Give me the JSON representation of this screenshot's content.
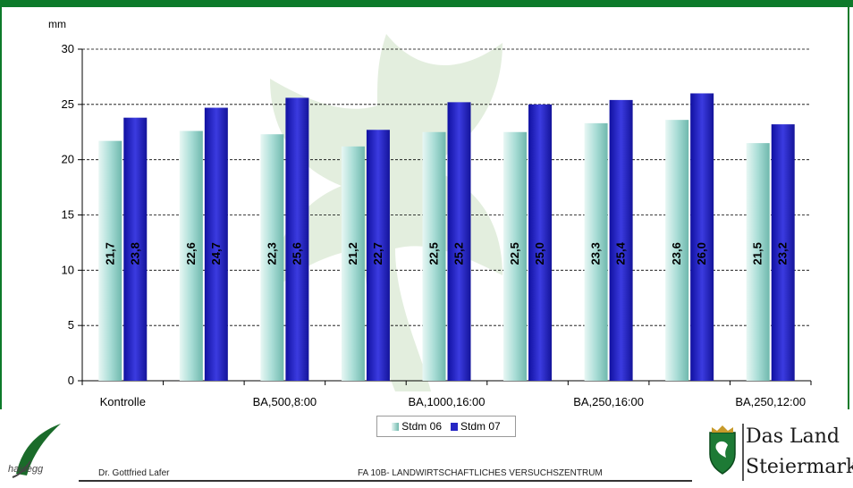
{
  "chart_data": {
    "type": "bar",
    "ylabel": "mm",
    "ylim": [
      0,
      30
    ],
    "yticks": [
      0,
      5,
      10,
      15,
      20,
      25,
      30
    ],
    "grid": true,
    "legend_position": "bottom",
    "x_tick_labels": [
      "Kontrolle",
      "",
      "BA,500,8:00",
      "",
      "BA,1000,16:00",
      "",
      "BA,250,16:00",
      "",
      "BA,250,12:00"
    ],
    "categories": [
      "Kontrolle",
      "",
      "BA,500,8:00",
      "",
      "BA,1000,16:00",
      "",
      "BA,250,16:00",
      "",
      "BA,250,12:00"
    ],
    "series": [
      {
        "name": "Stdm 06",
        "color": "#a9ddd6",
        "values": [
          21.7,
          22.6,
          22.3,
          21.2,
          22.5,
          22.5,
          23.3,
          23.6,
          21.5
        ],
        "labels": [
          "21,7",
          "22,6",
          "22,3",
          "21,2",
          "22,5",
          "22,5",
          "23,3",
          "23,6",
          "21,5"
        ]
      },
      {
        "name": "Stdm 07",
        "color": "#2727c4",
        "values": [
          23.8,
          24.7,
          25.6,
          22.7,
          25.2,
          25.0,
          25.4,
          26.0,
          23.2
        ],
        "labels": [
          "23,8",
          "24,7",
          "25,6",
          "22,7",
          "25,2",
          "25,0",
          "25,4",
          "26,0",
          "23,2"
        ]
      }
    ]
  },
  "legend": {
    "s1": "Stdm 06",
    "s2": "Stdm 07"
  },
  "footer": {
    "author": "Dr. Gottfried Lafer",
    "org": "FA 10B- LANDWIRTSCHAFTLICHES VERSUCHSZENTRUM",
    "logo_left_text": "haidegg",
    "logo_right_line1": "Das Land",
    "logo_right_line2": "Steiermark"
  },
  "colors": {
    "frame": "#0d7a2a",
    "s1": "#a9ddd6",
    "s2": "#2727c4"
  }
}
